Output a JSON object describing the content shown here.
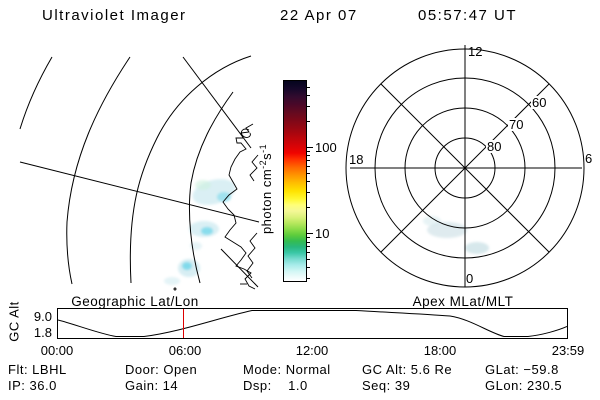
{
  "header": {
    "title": "Ultraviolet Imager",
    "date": "22 Apr 07",
    "time": "05:57:47 UT"
  },
  "colorbar": {
    "unit_text": "photon cm",
    "unit_sup1": "-2",
    "unit_mid": "s",
    "unit_sup2": "-1",
    "tick_100": "100",
    "tick_10": "10"
  },
  "geo_panel": {
    "caption": "Geographic Lat/Lon"
  },
  "polar_panel": {
    "caption": "Apex MLat/MLT",
    "mlt_top": "12",
    "mlt_left": "18",
    "mlt_right": "6",
    "mlt_bottom": "0",
    "mlat_60": "60",
    "mlat_70": "70",
    "mlat_80": "80"
  },
  "alt_strip": {
    "ylabel": "GC Alt",
    "ytick_top": "9.0",
    "ytick_bottom": "1.8",
    "xticks": [
      "00:00",
      "06:00",
      "12:00",
      "18:00",
      "23:59"
    ],
    "marker_color": "#dd0000"
  },
  "status": {
    "rows": [
      [
        "Flt: LBHL",
        "Door: Open",
        "Mode: Normal",
        "GC Alt: 5.6 Re",
        "GLat: −59.8"
      ],
      [
        "IP: 36.0",
        "Gain: 14",
        "Dsp:    1.0",
        "Seq: 39",
        "GLon: 230.5"
      ]
    ]
  },
  "chart_data": [
    {
      "type": "line",
      "title": "GC Alt",
      "ylabel": "GC Alt (Re)",
      "xlabel": "UT",
      "x": [
        "00:00",
        "01:30",
        "03:15",
        "04:30",
        "05:57",
        "08:00",
        "10:00",
        "12:00",
        "13:30",
        "15:00",
        "17:00",
        "18:30",
        "20:15",
        "21:00",
        "22:30",
        "23:59"
      ],
      "values": [
        5.2,
        3.0,
        1.8,
        3.2,
        5.6,
        7.9,
        9.0,
        9.6,
        9.6,
        9.0,
        8.2,
        7.5,
        1.8,
        1.8,
        2.6,
        3.9
      ],
      "yticks": [
        9.0,
        1.8
      ],
      "ylim": [
        1.0,
        10.0
      ],
      "xrange": [
        "00:00",
        "23:59"
      ],
      "marker_time": "05:57",
      "marker_value_re": 5.6,
      "grid": false,
      "legend": "none"
    },
    {
      "type": "heatmap",
      "title": "Geographic Lat/Lon",
      "description": "UV auroral image mapped in geographic lat/lon over the southern polar cap; latitude arcs and meridian lines with Antarctic coastline; faint emission patches ~5-15 photon cm-2 s-1 near the coastline",
      "colorscale_units": "photon cm-2 s-1"
    },
    {
      "type": "heatmap",
      "title": "Apex MLat/MLT",
      "rings_mlat": [
        80,
        70,
        60,
        50
      ],
      "mlt_spoke_labels": [
        12,
        18,
        6,
        0
      ],
      "description": "Same UV image in Apex magnetic latitude / magnetic local time; faint emission near 21-23 MLT around 55-65 MLat",
      "colorbar": {
        "scale": "log",
        "ticks": [
          10,
          100
        ],
        "approx_range": [
          3,
          600
        ],
        "units": "photon cm-2 s-1"
      }
    }
  ]
}
